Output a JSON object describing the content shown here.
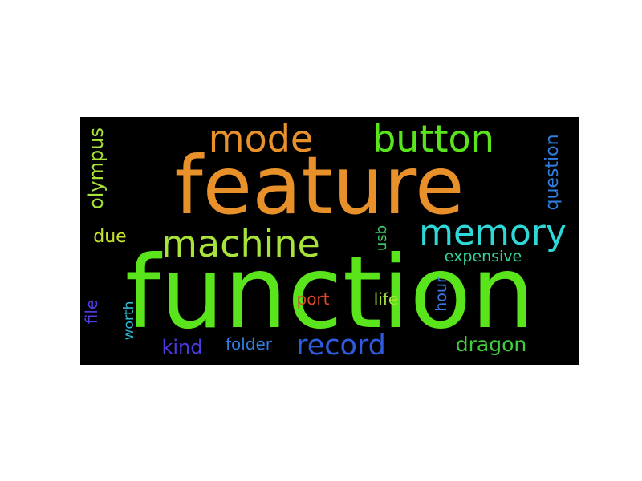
{
  "wordcloud": {
    "background": "#000000",
    "words": [
      {
        "text": "feature",
        "color": "#e8902a",
        "orientation": "horizontal"
      },
      {
        "text": "function",
        "color": "#59e41c",
        "orientation": "horizontal"
      },
      {
        "text": "mode",
        "color": "#e8902a",
        "orientation": "horizontal"
      },
      {
        "text": "button",
        "color": "#59e41c",
        "orientation": "horizontal"
      },
      {
        "text": "machine",
        "color": "#a8e33a",
        "orientation": "horizontal"
      },
      {
        "text": "memory",
        "color": "#2fd8d8",
        "orientation": "horizontal"
      },
      {
        "text": "record",
        "color": "#2f5be0",
        "orientation": "horizontal"
      },
      {
        "text": "dragon",
        "color": "#3fcf3a",
        "orientation": "horizontal"
      },
      {
        "text": "olympus",
        "color": "#a8e33a",
        "orientation": "vertical"
      },
      {
        "text": "question",
        "color": "#2f7fe0",
        "orientation": "vertical"
      },
      {
        "text": "due",
        "color": "#c9e02a",
        "orientation": "horizontal"
      },
      {
        "text": "expensive",
        "color": "#36d39a",
        "orientation": "horizontal"
      },
      {
        "text": "usb",
        "color": "#3fcf6a",
        "orientation": "vertical"
      },
      {
        "text": "hour",
        "color": "#3a78e0",
        "orientation": "vertical"
      },
      {
        "text": "port",
        "color": "#d9482a",
        "orientation": "horizontal"
      },
      {
        "text": "life",
        "color": "#a8e33a",
        "orientation": "horizontal"
      },
      {
        "text": "file",
        "color": "#4d3ee0",
        "orientation": "vertical"
      },
      {
        "text": "worth",
        "color": "#2fb8d0",
        "orientation": "vertical"
      },
      {
        "text": "kind",
        "color": "#4a3ae0",
        "orientation": "horizontal"
      },
      {
        "text": "folder",
        "color": "#2f7fe0",
        "orientation": "horizontal"
      }
    ]
  }
}
